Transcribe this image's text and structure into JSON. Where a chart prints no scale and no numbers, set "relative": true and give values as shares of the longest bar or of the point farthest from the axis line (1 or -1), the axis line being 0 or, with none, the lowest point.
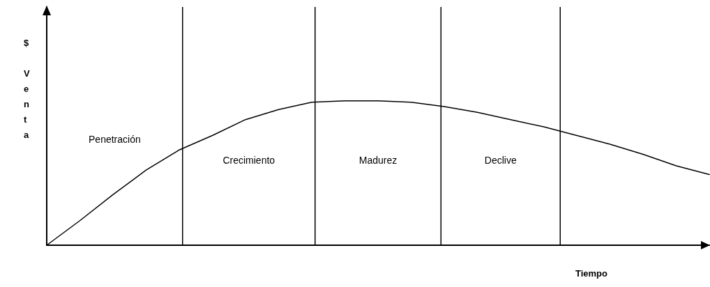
{
  "chart_data": {
    "type": "line",
    "relative": true,
    "xlabel": "Tiempo",
    "ylabel": "$ Venta",
    "categories": [
      null,
      null,
      null,
      null,
      null,
      null,
      null,
      null,
      null,
      null,
      null,
      null,
      null,
      null,
      null,
      null,
      null,
      null,
      null,
      null,
      null
    ],
    "marker": "none",
    "line_style": "solid",
    "series": [
      {
        "color": "#000000",
        "values": [
          0,
          0.17,
          0.35,
          0.52,
          0.66,
          0.76,
          0.87,
          0.94,
          0.99,
          1,
          1,
          0.99,
          0.96,
          0.92,
          0.87,
          0.82,
          0.76,
          0.7,
          0.63,
          0.55,
          0.49
        ]
      }
    ],
    "annotations": [
      "Penetración",
      "Crecimiento",
      "Madurez",
      "Declive"
    ]
  }
}
